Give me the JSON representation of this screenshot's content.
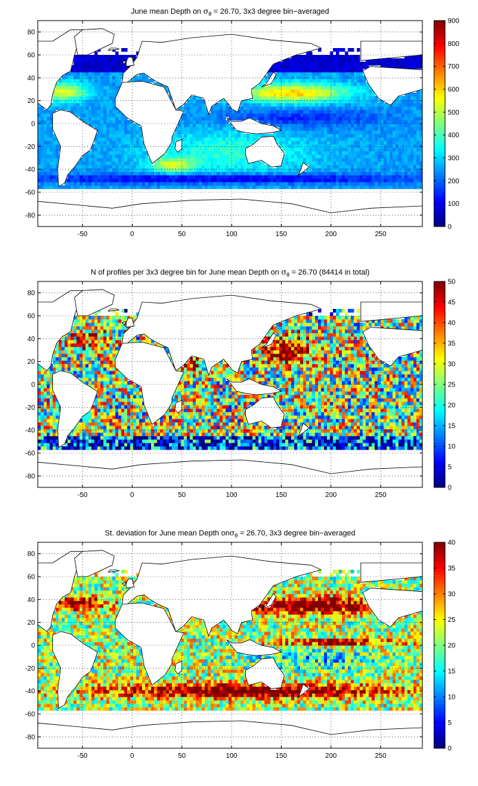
{
  "chart_data": [
    {
      "type": "heatmap",
      "title": "June mean Depth on σθ = 26.70, 3x3 degree bin−averaged",
      "title_parts": {
        "pre": "June mean Depth on ",
        "sym": "σ",
        "sub": "θ",
        "post": " = 26.70, 3x3 degree bin−averaged"
      },
      "x_ticks": [
        -50,
        0,
        50,
        100,
        150,
        200,
        250
      ],
      "y_ticks": [
        80,
        60,
        40,
        20,
        0,
        -20,
        -40,
        -60,
        -80
      ],
      "xlim": [
        -95,
        292
      ],
      "ylim": [
        -90,
        90
      ],
      "grid": true,
      "colorbar": {
        "min": 0,
        "max": 900,
        "ticks": [
          900,
          800,
          700,
          600,
          500,
          400,
          300,
          200,
          100,
          0
        ],
        "colormap": "jet"
      },
      "field_pattern": "depth"
    },
    {
      "type": "heatmap",
      "title": "N of profiles per 3x3 degree bin for June mean Depth on σθ = 26.70 (84414 in total)",
      "title_parts": {
        "pre": "N of profiles per 3x3 degree bin for June mean Depth on ",
        "sym": "σ",
        "sub": "θ",
        "post": " = 26.70 (84414 in total)"
      },
      "x_ticks": [
        -50,
        0,
        50,
        100,
        150,
        200,
        250
      ],
      "y_ticks": [
        80,
        60,
        40,
        20,
        0,
        -20,
        -40,
        -60,
        -80
      ],
      "xlim": [
        -95,
        292
      ],
      "ylim": [
        -90,
        90
      ],
      "grid": true,
      "colorbar": {
        "min": 0,
        "max": 50,
        "ticks": [
          50,
          45,
          40,
          35,
          30,
          25,
          20,
          15,
          10,
          5,
          0
        ],
        "colormap": "jet"
      },
      "field_pattern": "count"
    },
    {
      "type": "heatmap",
      "title": "St. deviation for June mean Depth on σθ = 26.70, 3x3 degree bin−averaged",
      "title_parts": {
        "pre": "St. deviation for June mean Depth on",
        "sym": "σ",
        "sub": "θ",
        "post": " = 26.70, 3x3 degree bin−averaged"
      },
      "x_ticks": [
        -50,
        0,
        50,
        100,
        150,
        200,
        250
      ],
      "y_ticks": [
        80,
        60,
        40,
        20,
        0,
        -20,
        -40,
        -60,
        -80
      ],
      "xlim": [
        -95,
        292
      ],
      "ylim": [
        -90,
        90
      ],
      "grid": true,
      "colorbar": {
        "min": 0,
        "max": 40,
        "ticks": [
          40,
          35,
          30,
          25,
          20,
          15,
          10,
          5,
          0
        ],
        "colormap": "jet"
      },
      "field_pattern": "stdev"
    }
  ]
}
